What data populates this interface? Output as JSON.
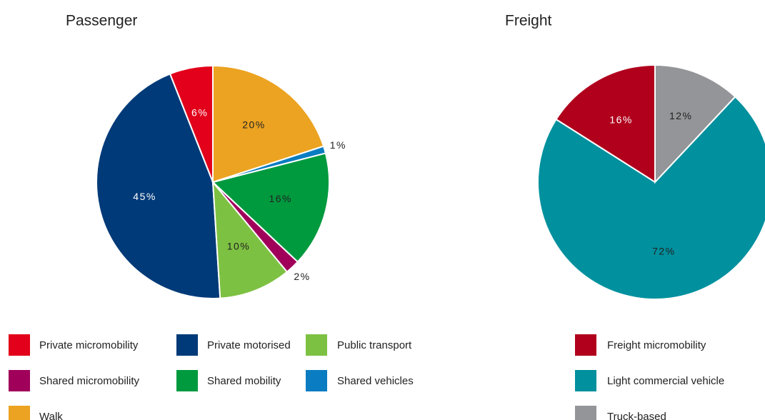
{
  "chart_data": [
    {
      "type": "pie",
      "title": "Passenger",
      "direction": "counterclockwise",
      "categories": [
        "Private micromobility",
        "Private motorised",
        "Public transport",
        "Shared micromobility",
        "Shared mobility",
        "Shared vehicles",
        "Walk"
      ],
      "values": [
        6,
        45,
        10,
        2,
        16,
        1,
        20
      ],
      "value_labels": [
        "6%",
        "45%",
        "10%",
        "2%",
        "16%",
        "1%",
        "20%"
      ],
      "colors": [
        "#e2001a",
        "#003a78",
        "#7dc142",
        "#a0005a",
        "#009a3e",
        "#0a7cc1",
        "#eca321"
      ]
    },
    {
      "type": "pie",
      "title": "Freight",
      "direction": "counterclockwise",
      "categories": [
        "Freight micromobility",
        "Light commercial vehicle",
        "Truck-based"
      ],
      "values": [
        16,
        72,
        12
      ],
      "value_labels": [
        "16%",
        "72%",
        "12%"
      ],
      "colors": [
        "#b0001c",
        "#00909e",
        "#939598"
      ]
    }
  ]
}
